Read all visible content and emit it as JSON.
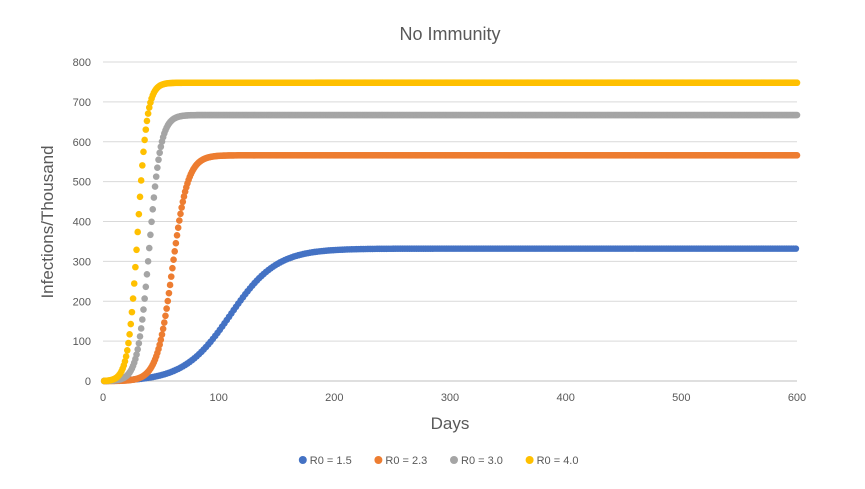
{
  "chart_data": {
    "type": "scatter",
    "title": "No Immunity",
    "xlabel": "Days",
    "ylabel": "Infections/Thousand",
    "xlim": [
      0,
      600
    ],
    "ylim": [
      0,
      800
    ],
    "x_ticks": [
      0,
      100,
      200,
      300,
      400,
      500,
      600
    ],
    "y_ticks": [
      0,
      100,
      200,
      300,
      400,
      500,
      600,
      700,
      800
    ],
    "grid": "horizontal",
    "legend_position": "bottom",
    "marker": "circle",
    "series": [
      {
        "name": "R0 = 1.5",
        "color": "#4472C4",
        "model": {
          "plateau": 332,
          "midpoint_day": 110,
          "rate": 0.05,
          "start": 1,
          "end": 600,
          "step": 2
        }
      },
      {
        "name": "R0 = 2.3",
        "color": "#ED7D31",
        "model": {
          "plateau": 566,
          "midpoint_day": 60,
          "rate": 0.15,
          "start": 1,
          "end": 600,
          "step": 1
        }
      },
      {
        "name": "R0 = 3.0",
        "color": "#A5A5A5",
        "model": {
          "plateau": 667,
          "midpoint_day": 40,
          "rate": 0.2,
          "start": 1,
          "end": 600,
          "step": 1
        }
      },
      {
        "name": "R0 = 4.0",
        "color": "#FFC000",
        "model": {
          "plateau": 748,
          "midpoint_day": 30,
          "rate": 0.24,
          "start": 1,
          "end": 600,
          "step": 1
        }
      }
    ]
  }
}
